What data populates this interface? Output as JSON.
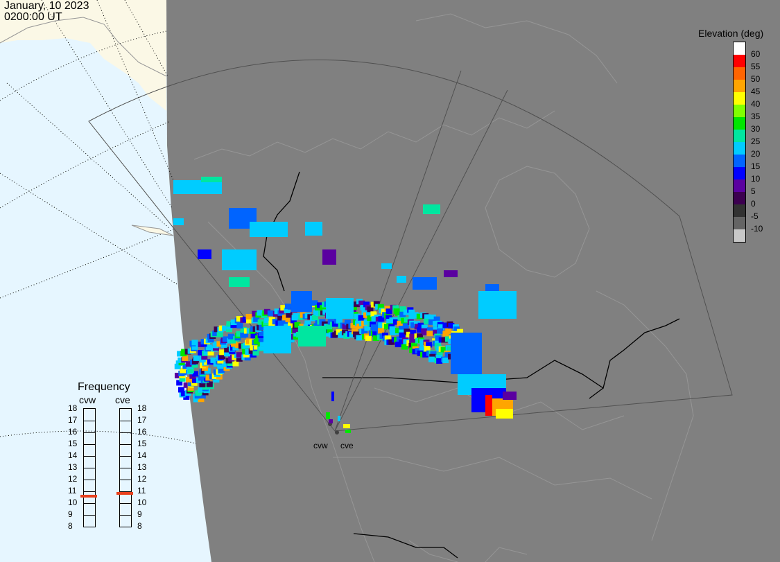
{
  "header": {
    "date": "January, 10 2023",
    "time": "0200:00 UT"
  },
  "legend": {
    "title": "Elevation (deg)",
    "entries": [
      {
        "label": "60",
        "color": "#ffffff"
      },
      {
        "label": "55",
        "color": "#ff0000"
      },
      {
        "label": "50",
        "color": "#ff6400"
      },
      {
        "label": "45",
        "color": "#ffa500"
      },
      {
        "label": "40",
        "color": "#ffff00"
      },
      {
        "label": "35",
        "color": "#80ff00"
      },
      {
        "label": "30",
        "color": "#00e600"
      },
      {
        "label": "25",
        "color": "#00e6a0"
      },
      {
        "label": "20",
        "color": "#00ccff"
      },
      {
        "label": "15",
        "color": "#0064ff"
      },
      {
        "label": "10",
        "color": "#0000ff"
      },
      {
        "label": "5",
        "color": "#5a00a0"
      },
      {
        "label": "0",
        "color": "#3c0050"
      },
      {
        "label": "-5",
        "color": "#323232"
      },
      {
        "label": "-10",
        "color": "#646464"
      },
      {
        "label": "",
        "color": "#c8c8c8"
      }
    ]
  },
  "frequency": {
    "title": "Frequency",
    "scale": [
      "18",
      "17",
      "16",
      "15",
      "14",
      "13",
      "12",
      "11",
      "10",
      "9",
      "8"
    ],
    "radars": [
      {
        "name": "cvw",
        "value_mhz": 10.6
      },
      {
        "name": "cve",
        "value_mhz": 10.8
      }
    ],
    "right_labels": [
      "18",
      "17",
      "16",
      "15",
      "14",
      "13",
      "12",
      "11",
      "10",
      "9",
      "8"
    ]
  },
  "sites": {
    "west": "cvw",
    "east": "cve"
  },
  "colors": {
    "night": "#808080",
    "ocean_day": "#e6f6ff",
    "land_day": "#fbf8e6",
    "coast": "#969696",
    "accent_freq": "#e8401c"
  }
}
